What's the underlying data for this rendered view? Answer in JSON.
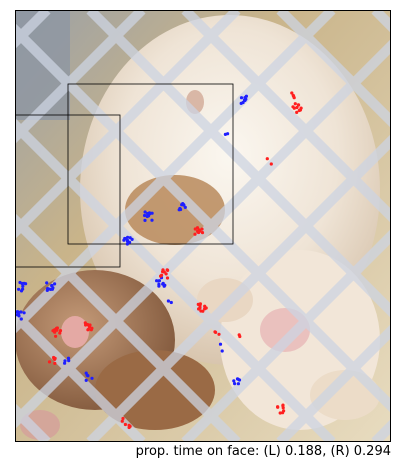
{
  "caption": "prop. time on face: (L) 0.188, (R) 0.294",
  "legend_series": [
    {
      "key": "L",
      "color": "#1f1fff"
    },
    {
      "key": "R",
      "color": "#ff1f1f"
    }
  ],
  "colors": {
    "background_photo": "#d9c9a8",
    "fence_wire": "#c8d0de",
    "box_stroke": "#000000"
  }
}
